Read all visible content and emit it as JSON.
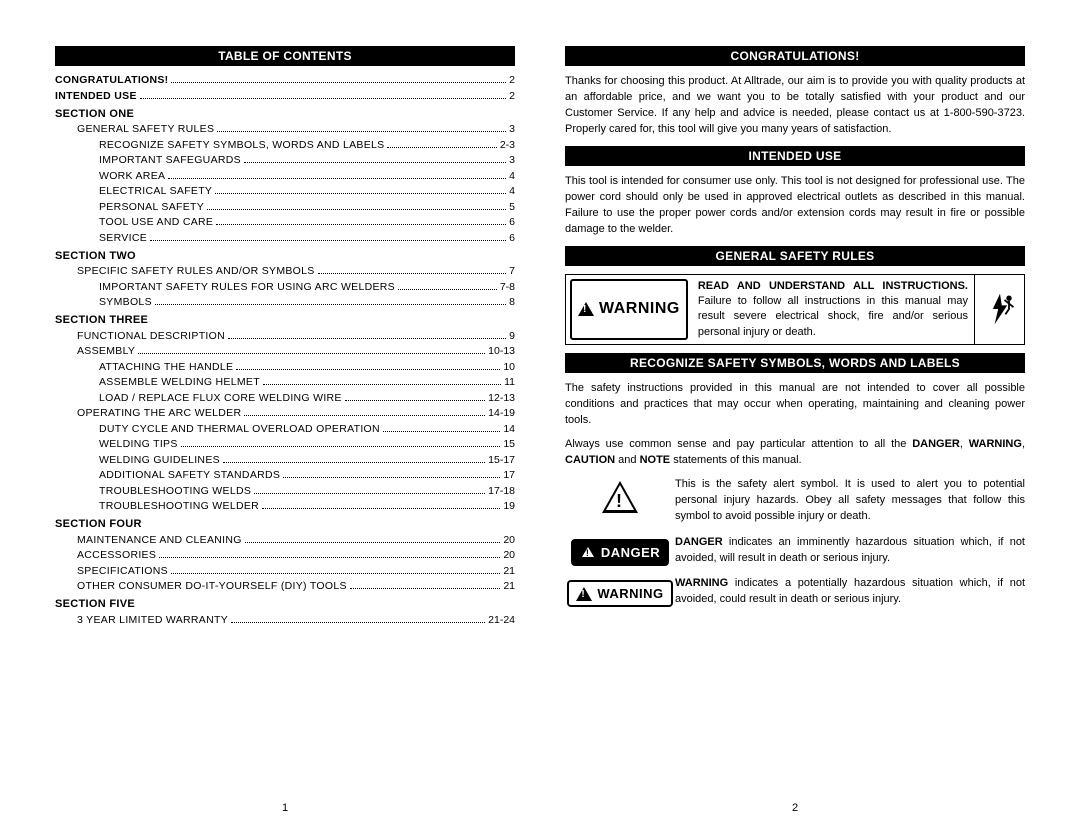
{
  "left": {
    "title": "TABLE OF CONTENTS",
    "pageNum": "1",
    "toc": [
      {
        "label": "CONGRATULATIONS!",
        "page": "2",
        "style": "bold",
        "indent": 0
      },
      {
        "label": "INTENDED USE",
        "page": "2",
        "style": "bold",
        "indent": 0
      },
      {
        "label": "SECTION ONE",
        "style": "section"
      },
      {
        "label": "GENERAL SAFETY RULES",
        "page": "3",
        "indent": 1
      },
      {
        "label": "RECOGNIZE SAFETY SYMBOLS, WORDS AND LABELS",
        "page": "2-3",
        "indent": 2
      },
      {
        "label": "IMPORTANT SAFEGUARDS",
        "page": "3",
        "indent": 2
      },
      {
        "label": "WORK AREA",
        "page": "4",
        "indent": 2
      },
      {
        "label": "ELECTRICAL SAFETY",
        "page": "4",
        "indent": 2
      },
      {
        "label": "PERSONAL SAFETY",
        "page": "5",
        "indent": 2
      },
      {
        "label": "TOOL USE AND CARE",
        "page": "6",
        "indent": 2
      },
      {
        "label": "SERVICE",
        "page": "6",
        "indent": 2
      },
      {
        "label": "SECTION TWO",
        "style": "section"
      },
      {
        "label": "SPECIFIC SAFETY RULES AND/OR SYMBOLS",
        "page": "7",
        "indent": 1
      },
      {
        "label": "IMPORTANT SAFETY RULES FOR USING ARC WELDERS",
        "page": "7-8",
        "indent": 2
      },
      {
        "label": "SYMBOLS",
        "page": "8",
        "indent": 2
      },
      {
        "label": "SECTION THREE",
        "style": "section"
      },
      {
        "label": "FUNCTIONAL DESCRIPTION",
        "page": "9",
        "indent": 1
      },
      {
        "label": "ASSEMBLY",
        "page": "10-13",
        "indent": 1
      },
      {
        "label": "ATTACHING THE HANDLE",
        "page": "10",
        "indent": 2
      },
      {
        "label": "ASSEMBLE WELDING HELMET",
        "page": "11",
        "indent": 2
      },
      {
        "label": "LOAD / REPLACE FLUX CORE WELDING WIRE",
        "page": "12-13",
        "indent": 2
      },
      {
        "label": "OPERATING THE ARC WELDER",
        "page": "14-19",
        "indent": 1
      },
      {
        "label": "DUTY CYCLE AND THERMAL OVERLOAD OPERATION",
        "page": "14",
        "indent": 2
      },
      {
        "label": "WELDING TIPS",
        "page": "15",
        "indent": 2
      },
      {
        "label": "WELDING GUIDELINES",
        "page": "15-17",
        "indent": 2
      },
      {
        "label": "ADDITIONAL SAFETY STANDARDS",
        "page": "17",
        "indent": 2
      },
      {
        "label": "TROUBLESHOOTING WELDS",
        "page": "17-18",
        "indent": 2
      },
      {
        "label": "TROUBLESHOOTING WELDER",
        "page": "19",
        "indent": 2
      },
      {
        "label": "SECTION FOUR",
        "style": "section"
      },
      {
        "label": "MAINTENANCE AND CLEANING",
        "page": "20",
        "indent": 1
      },
      {
        "label": "ACCESSORIES",
        "page": "20",
        "indent": 1
      },
      {
        "label": "SPECIFICATIONS",
        "page": "21",
        "indent": 1
      },
      {
        "label": "OTHER CONSUMER DO-IT-YOURSELF (DIY) TOOLS",
        "page": "21",
        "indent": 1
      },
      {
        "label": "SECTION FIVE",
        "style": "section"
      },
      {
        "label": "3 YEAR LIMITED WARRANTY",
        "page": "21-24",
        "indent": 1
      }
    ]
  },
  "right": {
    "pageNum": "2",
    "congrats": {
      "title": "CONGRATULATIONS!",
      "text": "Thanks for choosing this product. At Alltrade, our aim is to provide you with quality products at an affordable price, and we want you to be totally satisfied with your product and our Customer Service. If any help and advice is needed, please contact us at 1-800-590-3723. Properly cared for, this tool will give you many years of satisfaction."
    },
    "intended": {
      "title": "INTENDED USE",
      "text": "This tool is intended for consumer use only. This tool is not designed for professional use. The power cord should only be used in approved electrical outlets as described in this manual. Failure to use the proper power cords and/or extension cords may result in fire or possible damage to the welder."
    },
    "rules": {
      "title": "GENERAL SAFETY RULES",
      "warningLabel": "WARNING",
      "warningLead": "READ AND UNDERSTAND ALL INSTRUCTIONS.",
      "warningText": "Failure to follow all instructions in this manual may result severe electrical shock, fire and/or serious personal injury or death."
    },
    "recognize": {
      "title": "RECOGNIZE SAFETY SYMBOLS, WORDS AND LABELS",
      "p1": "The safety instructions provided in this manual are not intended to cover all possible conditions and practices that may occur when operating, maintaining and cleaning power tools.",
      "p2a": "Always use common sense and pay particular attention to all the ",
      "p2b": "DANGER",
      "p2c": ", ",
      "p2d": "WARNING",
      "p2e": ", ",
      "p2f": "CAUTION",
      "p2g": " and ",
      "p2h": "NOTE",
      "p2i": " statements of this manual."
    },
    "symbols": [
      {
        "icon": "alert",
        "text": "This is the safety alert symbol. It is used to alert you to potential personal injury hazards. Obey all safety messages that follow this symbol to avoid possible injury or death."
      },
      {
        "icon": "danger",
        "lead": "DANGER",
        "text": " indicates an imminently hazardous situation which, if not avoided, will result in death or serious injury."
      },
      {
        "icon": "warning",
        "lead": "WARNING",
        "text": " indicates a potentially hazardous situation which, if not avoided, could result in death or serious injury."
      }
    ]
  }
}
